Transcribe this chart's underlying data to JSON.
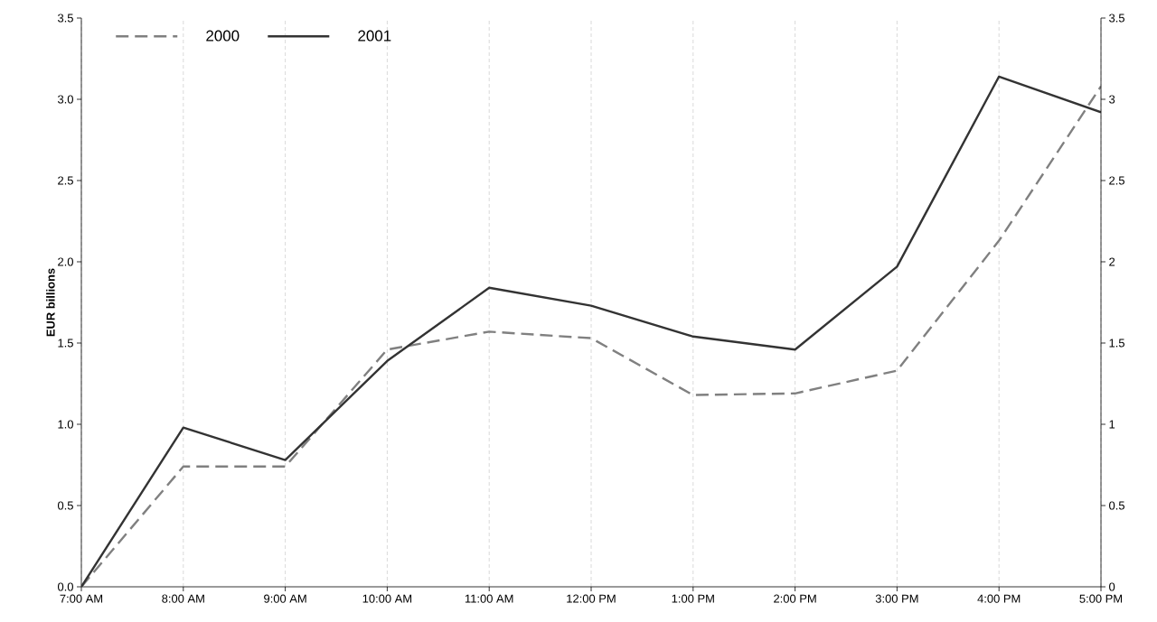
{
  "chart_data": {
    "type": "line",
    "ylabel": "EUR billions",
    "x": [
      7,
      8,
      9,
      10,
      11,
      12,
      13,
      14,
      15,
      16,
      17
    ],
    "xlim": [
      7,
      17
    ],
    "xticks": [
      {
        "value": 7,
        "label": "7:00 AM"
      },
      {
        "value": 8,
        "label": "8:00 AM"
      },
      {
        "value": 9,
        "label": "9:00 AM"
      },
      {
        "value": 10,
        "label": "10:00 AM"
      },
      {
        "value": 11,
        "label": "11:00 AM"
      },
      {
        "value": 12,
        "label": "12:00 PM"
      },
      {
        "value": 13,
        "label": "1:00 PM"
      },
      {
        "value": 14,
        "label": "2:00 PM"
      },
      {
        "value": 15,
        "label": "3:00 PM"
      },
      {
        "value": 16,
        "label": "4:00 PM"
      },
      {
        "value": 17,
        "label": "5:00 PM"
      }
    ],
    "ylim": [
      0,
      3.5
    ],
    "yticks": [
      {
        "value": 0,
        "label": "0.0"
      },
      {
        "value": 0.5,
        "label": "0.5"
      },
      {
        "value": 1,
        "label": "1.0"
      },
      {
        "value": 1.5,
        "label": "1.5"
      },
      {
        "value": 2,
        "label": "2.0"
      },
      {
        "value": 2.5,
        "label": "2.5"
      },
      {
        "value": 3,
        "label": "3.0"
      },
      {
        "value": 3.5,
        "label": "3.5"
      }
    ],
    "y2lim": [
      0,
      3.5
    ],
    "y2ticks": [
      0,
      0.5,
      1,
      1.5,
      2,
      2.5,
      3,
      3.5
    ],
    "grid": "x",
    "legend": "top left",
    "marker": "none",
    "series": [
      {
        "name": "2000",
        "color": "#808080",
        "line_style": "dashed",
        "values": [
          0,
          0.74,
          0.74,
          1.46,
          1.57,
          1.53,
          1.18,
          1.19,
          1.33,
          2.13,
          3.08
        ]
      },
      {
        "name": "2001",
        "color": "#333333",
        "line_style": "solid",
        "values": [
          0,
          0.98,
          0.78,
          1.39,
          1.84,
          1.73,
          1.54,
          1.46,
          1.97,
          3.14,
          2.92
        ]
      }
    ]
  }
}
